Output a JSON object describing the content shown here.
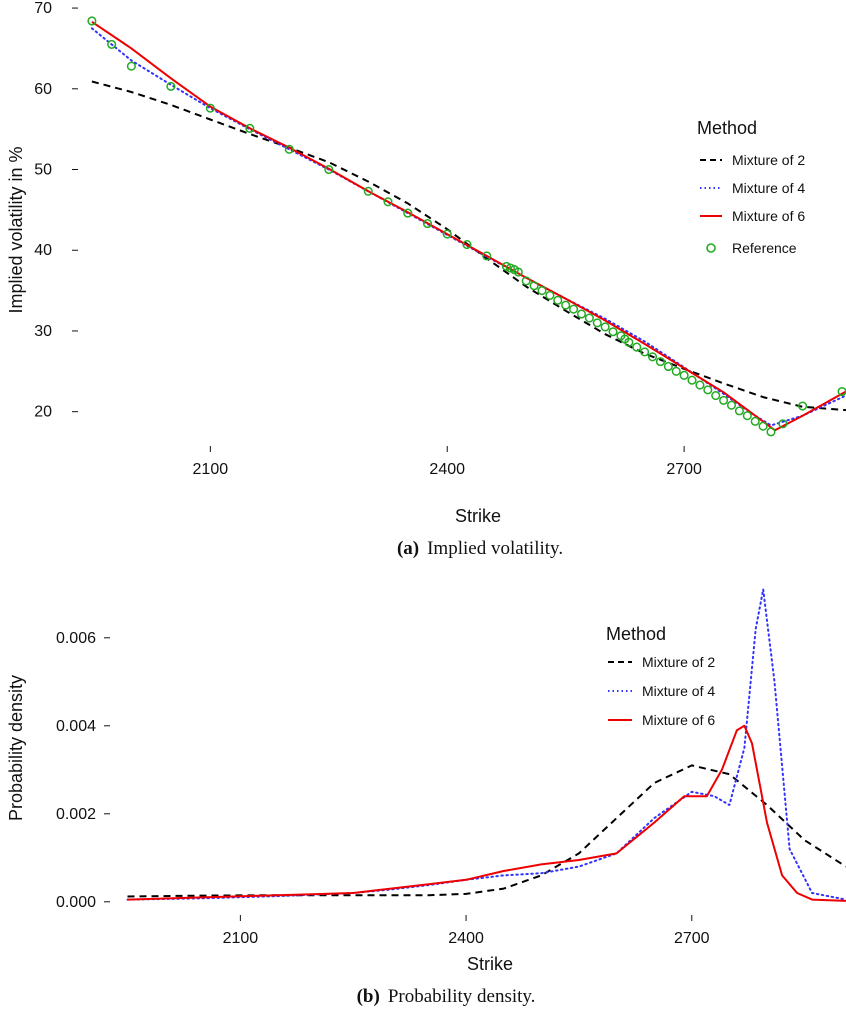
{
  "colors": {
    "mixture2": "#000000",
    "mixture4": "#3333ff",
    "mixture6": "#ee0000",
    "reference": "#22aa22"
  },
  "chart_data": [
    {
      "type": "line",
      "caption_tag": "(a)",
      "caption_text": "Implied volatility.",
      "xlabel": "Strike",
      "ylabel": "Implied volatility in %",
      "xlim": [
        1940,
        2905
      ],
      "ylim": [
        15.5,
        71
      ],
      "xticks": [
        2100,
        2400,
        2700
      ],
      "yticks": [
        20,
        30,
        40,
        50,
        60,
        70
      ],
      "legend": {
        "title": "Method",
        "placement": "right",
        "entries": [
          "Mixture of 2",
          "Mixture of 4",
          "Mixture of 6",
          "Reference"
        ]
      },
      "series": [
        {
          "name": "Mixture of 2",
          "style": "dashed",
          "x": [
            1950,
            2000,
            2050,
            2100,
            2150,
            2200,
            2250,
            2300,
            2350,
            2400,
            2450,
            2500,
            2550,
            2600,
            2650,
            2700,
            2750,
            2800,
            2850,
            2905
          ],
          "y": [
            60.9,
            59.6,
            58.0,
            56.2,
            54.4,
            52.7,
            50.9,
            48.5,
            45.8,
            42.6,
            39.0,
            35.5,
            32.5,
            29.6,
            27.2,
            25.3,
            23.5,
            21.8,
            20.6,
            20.2
          ]
        },
        {
          "name": "Mixture of 4",
          "style": "dotted",
          "x": [
            1950,
            2000,
            2050,
            2100,
            2150,
            2200,
            2250,
            2300,
            2350,
            2400,
            2450,
            2500,
            2550,
            2600,
            2650,
            2700,
            2750,
            2790,
            2810,
            2850,
            2905
          ],
          "y": [
            67.5,
            63.5,
            60.5,
            57.6,
            55.0,
            52.5,
            50.0,
            47.3,
            44.6,
            41.9,
            39.2,
            36.6,
            34.0,
            31.5,
            28.7,
            25.5,
            22.2,
            19.5,
            18.3,
            19.5,
            22.0
          ]
        },
        {
          "name": "Mixture of 6",
          "style": "solid",
          "x": [
            1950,
            2000,
            2050,
            2100,
            2150,
            2200,
            2250,
            2300,
            2350,
            2400,
            2450,
            2500,
            2550,
            2600,
            2650,
            2700,
            2750,
            2790,
            2815,
            2850,
            2905
          ],
          "y": [
            68.3,
            65.0,
            61.3,
            57.8,
            55.1,
            52.7,
            50.1,
            47.3,
            44.7,
            42.0,
            39.3,
            36.6,
            34.0,
            31.3,
            28.4,
            25.4,
            22.4,
            19.5,
            17.7,
            19.5,
            22.5
          ]
        },
        {
          "name": "Reference",
          "style": "points",
          "x": [
            1950,
            1975,
            2000,
            2050,
            2100,
            2150,
            2200,
            2250,
            2300,
            2325,
            2350,
            2375,
            2400,
            2425,
            2450,
            2475,
            2480,
            2485,
            2490,
            2500,
            2510,
            2520,
            2530,
            2540,
            2550,
            2560,
            2570,
            2580,
            2590,
            2600,
            2610,
            2620,
            2625,
            2630,
            2640,
            2650,
            2660,
            2670,
            2680,
            2690,
            2700,
            2710,
            2720,
            2730,
            2740,
            2750,
            2760,
            2770,
            2780,
            2790,
            2800,
            2810,
            2825,
            2850,
            2900
          ],
          "y": [
            68.4,
            65.5,
            62.8,
            60.3,
            57.6,
            55.1,
            52.5,
            50.0,
            47.3,
            46.0,
            44.6,
            43.3,
            42.0,
            40.7,
            39.3,
            38.0,
            37.8,
            37.6,
            37.3,
            36.2,
            35.6,
            35.0,
            34.4,
            33.8,
            33.2,
            32.7,
            32.1,
            31.6,
            31.0,
            30.5,
            29.9,
            29.4,
            29.0,
            28.6,
            28.0,
            27.4,
            26.8,
            26.2,
            25.6,
            25.0,
            24.5,
            23.9,
            23.3,
            22.7,
            22.0,
            21.4,
            20.8,
            20.1,
            19.5,
            18.8,
            18.2,
            17.5,
            18.5,
            20.7,
            22.5
          ]
        }
      ]
    },
    {
      "type": "line",
      "caption_tag": "(b)",
      "caption_text": "Probability density.",
      "xlabel": "Strike",
      "ylabel": "Probability density",
      "xlim": [
        1940,
        2905
      ],
      "ylim": [
        -0.0003,
        0.0072
      ],
      "xticks": [
        2100,
        2400,
        2700
      ],
      "yticks": [
        0.0,
        0.002,
        0.004,
        0.006
      ],
      "ytick_labels": [
        "0.000",
        "0.002",
        "0.004",
        "0.006"
      ],
      "legend": {
        "title": "Method",
        "placement": "top-right",
        "entries": [
          "Mixture of 2",
          "Mixture of 4",
          "Mixture of 6"
        ]
      },
      "series": [
        {
          "name": "Mixture of 2",
          "style": "dashed",
          "x": [
            1950,
            2050,
            2150,
            2250,
            2350,
            2400,
            2450,
            2500,
            2550,
            2600,
            2650,
            2700,
            2750,
            2800,
            2850,
            2905
          ],
          "y": [
            0.00012,
            0.00014,
            0.00015,
            0.00015,
            0.00015,
            0.00018,
            0.0003,
            0.0006,
            0.0011,
            0.0019,
            0.0027,
            0.0031,
            0.0029,
            0.0022,
            0.0014,
            0.0008
          ]
        },
        {
          "name": "Mixture of 4",
          "style": "dotted",
          "x": [
            1950,
            2050,
            2150,
            2250,
            2300,
            2350,
            2400,
            2450,
            2500,
            2550,
            2600,
            2650,
            2700,
            2730,
            2750,
            2770,
            2785,
            2795,
            2810,
            2830,
            2860,
            2905
          ],
          "y": [
            5e-05,
            8e-05,
            0.00013,
            0.0002,
            0.00028,
            0.00038,
            0.0005,
            0.0006,
            0.00065,
            0.0008,
            0.0011,
            0.0019,
            0.0025,
            0.0024,
            0.0022,
            0.0035,
            0.0062,
            0.0071,
            0.005,
            0.0012,
            0.0002,
            5e-05
          ]
        },
        {
          "name": "Mixture of 6",
          "style": "solid",
          "x": [
            1950,
            2050,
            2150,
            2250,
            2300,
            2350,
            2400,
            2450,
            2500,
            2550,
            2600,
            2650,
            2690,
            2720,
            2740,
            2760,
            2770,
            2780,
            2800,
            2820,
            2840,
            2860,
            2905
          ],
          "y": [
            5e-05,
            0.0001,
            0.00015,
            0.0002,
            0.0003,
            0.0004,
            0.0005,
            0.0007,
            0.00085,
            0.00095,
            0.0011,
            0.0018,
            0.0024,
            0.0024,
            0.003,
            0.0039,
            0.004,
            0.0036,
            0.0018,
            0.0006,
            0.0002,
            5e-05,
            2e-05
          ]
        }
      ]
    }
  ]
}
